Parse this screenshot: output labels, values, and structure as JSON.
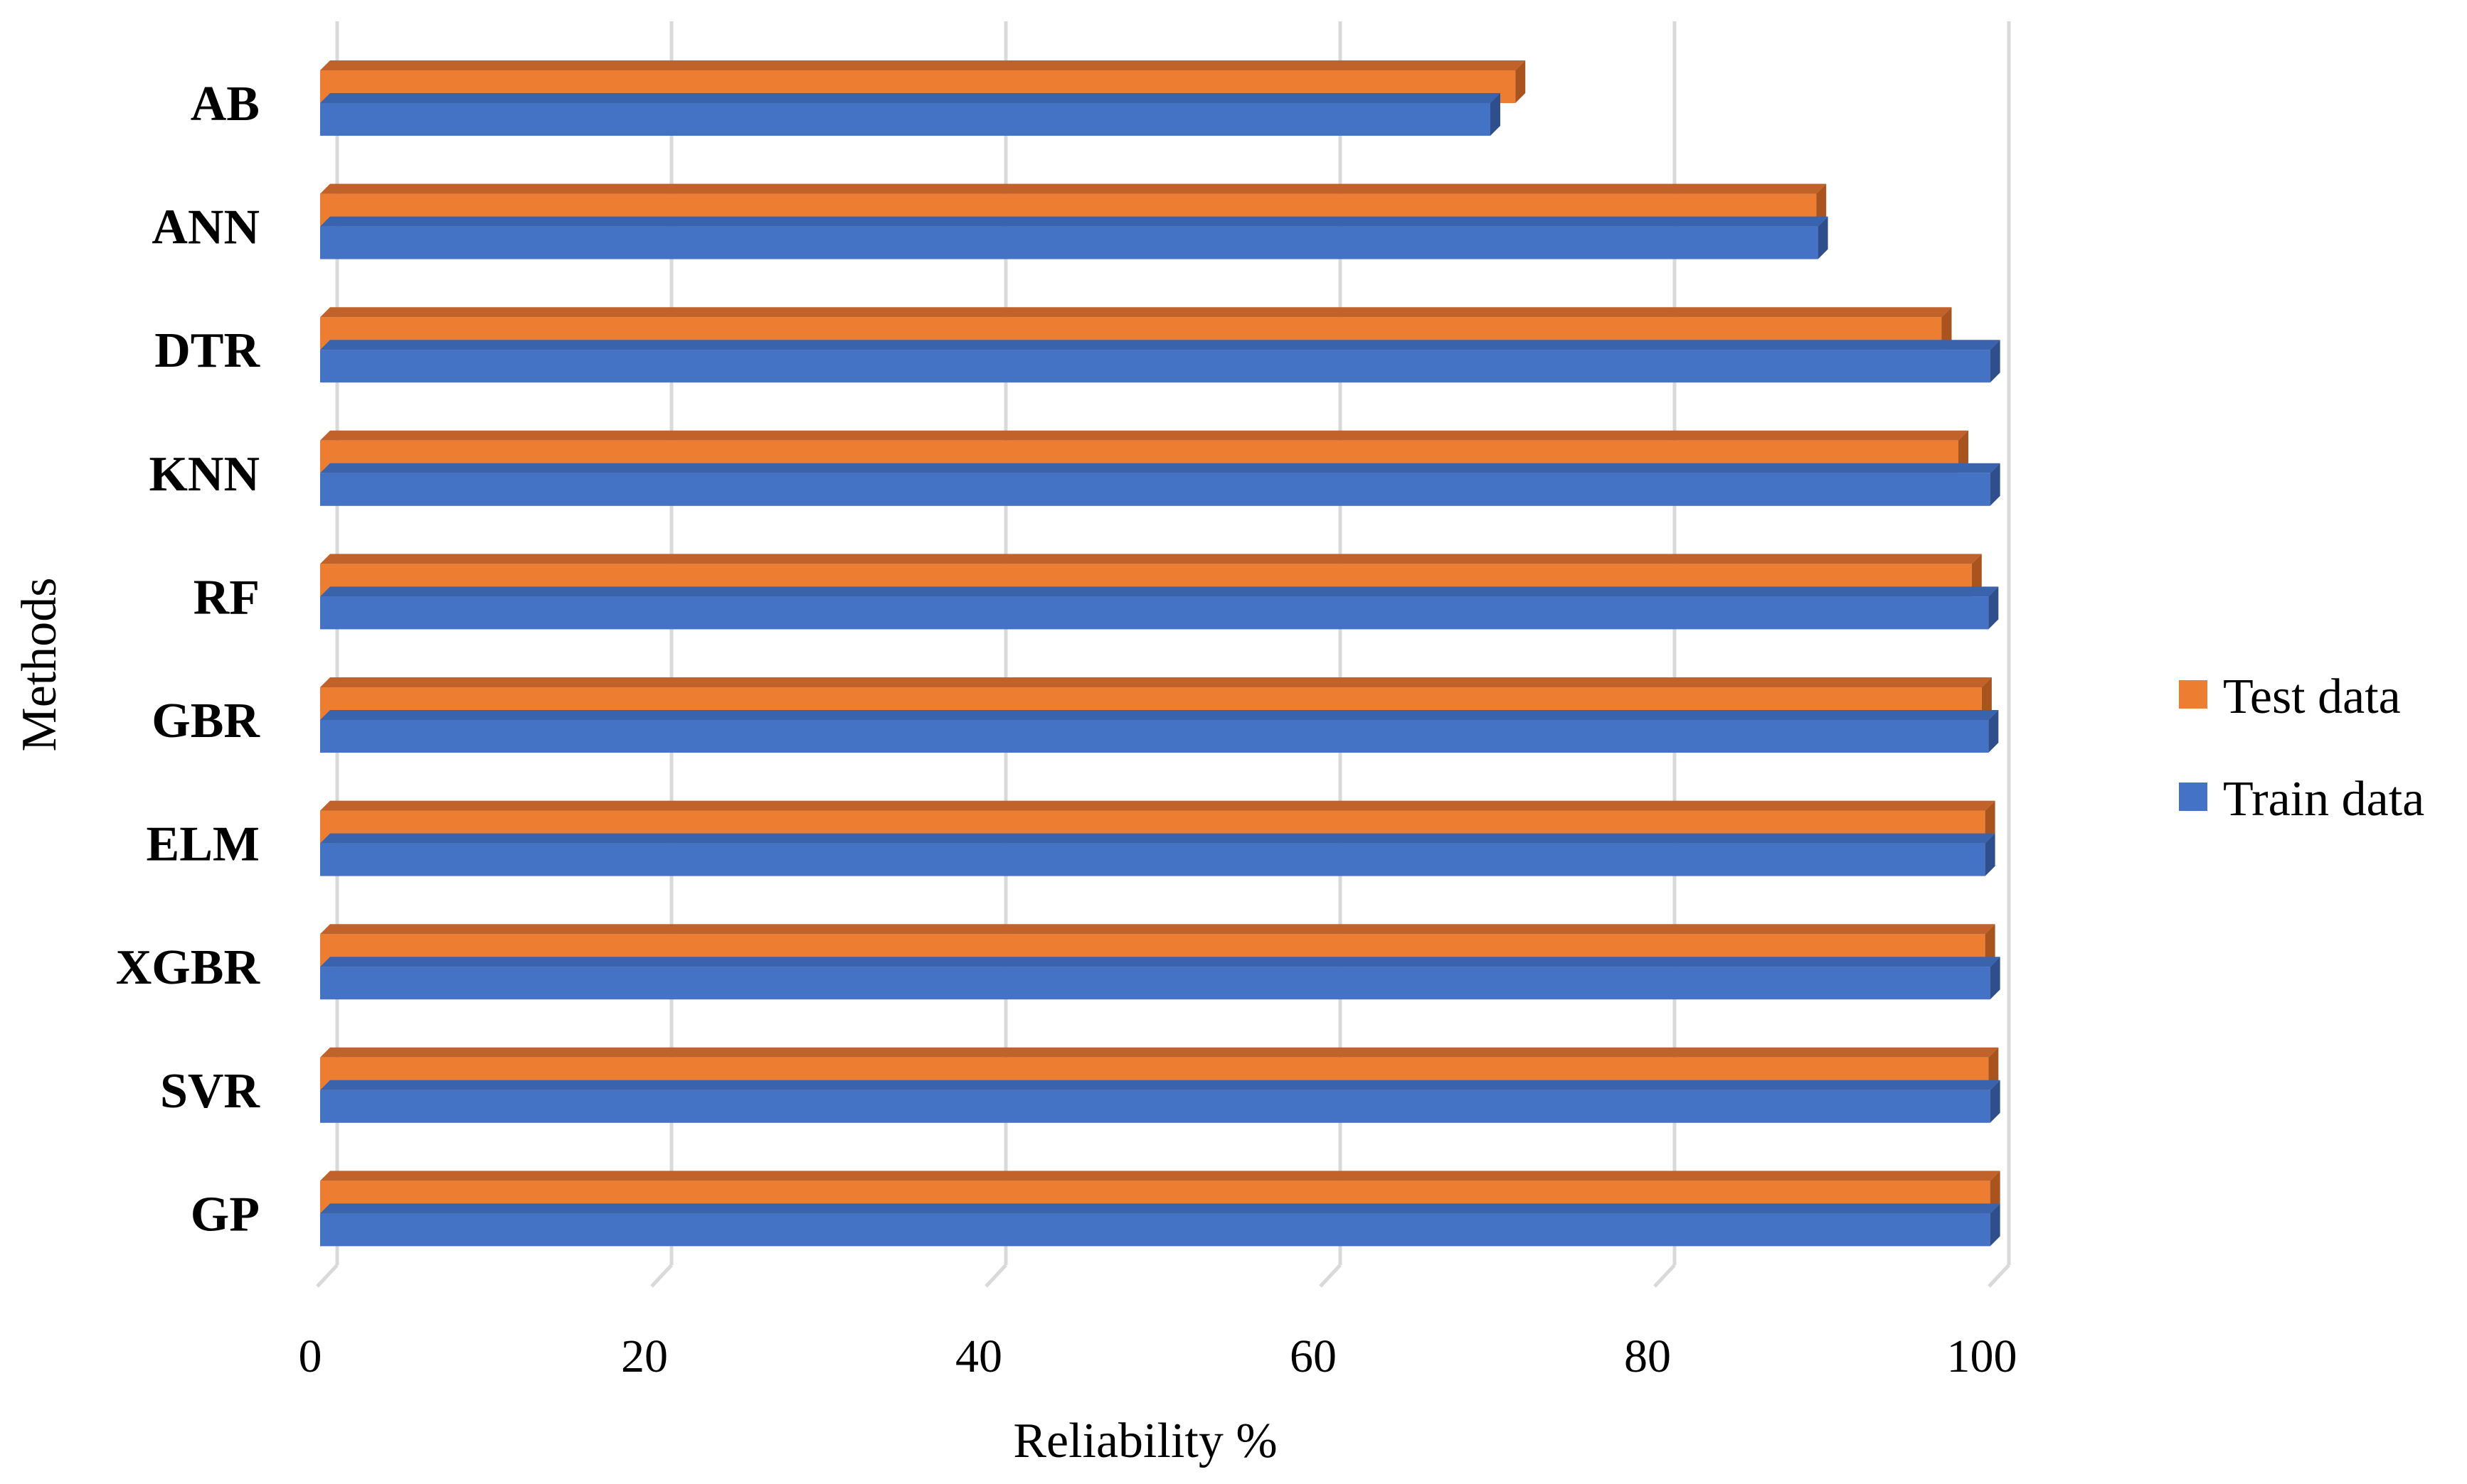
{
  "colors": {
    "test": "#ed7d31",
    "test_top": "#c0622a",
    "test_side": "#a9541f",
    "train": "#4472c4",
    "train_top": "#3a63ad",
    "train_side": "#2f4f8c"
  },
  "chart_data": {
    "type": "bar",
    "orientation": "horizontal",
    "title": "",
    "xlabel": "Reliability %",
    "ylabel": "Methods",
    "xlim": [
      0,
      100
    ],
    "xticks": [
      0,
      20,
      40,
      60,
      80,
      100
    ],
    "grid": true,
    "legend_position": "right",
    "categories": [
      "AB",
      "ANN",
      "DTR",
      "KNN",
      "RF",
      "GBR",
      "ELM",
      "XGBR",
      "SVR",
      "GP"
    ],
    "series": [
      {
        "name": "Test data",
        "key": "test",
        "values": [
          71.5,
          89.5,
          97,
          98,
          98.8,
          99.4,
          99.6,
          99.6,
          99.8,
          99.9
        ]
      },
      {
        "name": "Train data",
        "key": "train",
        "values": [
          70,
          89.6,
          99.9,
          99.9,
          99.8,
          99.8,
          99.6,
          99.9,
          99.9,
          99.9
        ]
      }
    ]
  }
}
